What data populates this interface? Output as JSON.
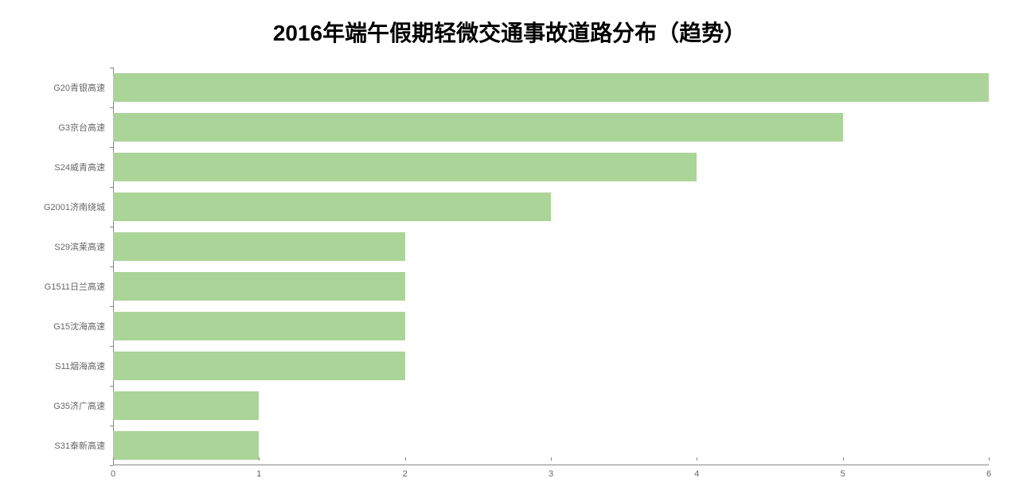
{
  "chart": {
    "type": "horizontal-bar",
    "title": "2016年端午假期轻微交通事故道路分布（趋势）",
    "title_fontsize": 28,
    "title_fontweight": "bold",
    "title_color": "#000000",
    "background_color": "#ffffff",
    "bar_color": "#abd498",
    "axis_color": "#888888",
    "label_color": "#666666",
    "label_fontsize": 11,
    "xlim": [
      0,
      6
    ],
    "xtick_step": 1,
    "xticks": [
      0,
      1,
      2,
      3,
      4,
      5,
      6
    ],
    "bar_height_ratio": 0.72,
    "categories": [
      "G20青银高速",
      "G3京台高速",
      "S24威青高速",
      "G2001济南绕城",
      "S29滨莱高速",
      "G1511日兰高速",
      "G15沈海高速",
      "S11烟海高速",
      "G35济广高速",
      "S31泰新高速"
    ],
    "values": [
      6,
      5,
      4,
      3,
      2,
      2,
      2,
      2,
      1,
      1
    ]
  }
}
